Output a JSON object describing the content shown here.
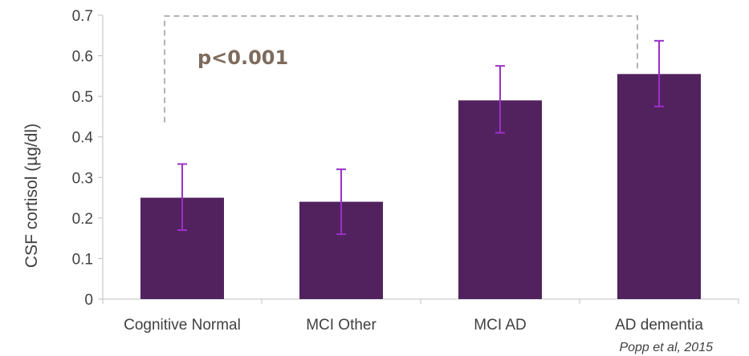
{
  "chart_data": {
    "type": "bar",
    "title": "",
    "xlabel": "",
    "ylabel": "CSF cortisol (µg/dl)",
    "categories": [
      "Cognitive Normal",
      "MCI Other",
      "MCI AD",
      "AD dementia"
    ],
    "values": [
      0.25,
      0.24,
      0.49,
      0.555
    ],
    "error_low": [
      0.17,
      0.16,
      0.41,
      0.475
    ],
    "error_high": [
      0.333,
      0.32,
      0.575,
      0.637
    ],
    "ylim": [
      0,
      0.7
    ],
    "yticks": [
      "0",
      "0.1",
      "0.2",
      "0.3",
      "0.4",
      "0.5",
      "0.6",
      "0.7"
    ],
    "grid": false,
    "legend": "none",
    "bar_color": "#52225e",
    "error_bar_color": "#9b30c8",
    "bracket_color": "#9a9a9a",
    "annotation": {
      "text": "p<0.001",
      "between": [
        "Cognitive Normal",
        "AD dementia"
      ],
      "color": "#7d6b5d"
    },
    "source": "Popp et al, 2015"
  }
}
